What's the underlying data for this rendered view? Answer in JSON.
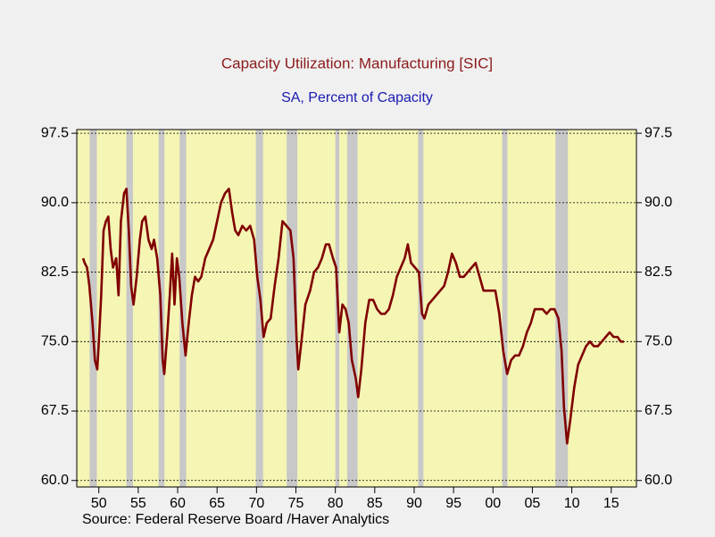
{
  "chart_data": {
    "type": "line",
    "title": "Capacity Utilization: Manufacturing [SIC]",
    "subtitle": "SA, Percent of Capacity",
    "source": "Source:  Federal Reserve Board /Haver Analytics",
    "x": [
      1948.0,
      1948.2,
      1948.5,
      1948.8,
      1949.2,
      1949.5,
      1949.8,
      1950.0,
      1950.3,
      1950.6,
      1950.9,
      1951.2,
      1951.5,
      1951.8,
      1952.2,
      1952.5,
      1952.8,
      1953.2,
      1953.5,
      1953.8,
      1954.1,
      1954.4,
      1954.8,
      1955.2,
      1955.5,
      1955.9,
      1956.3,
      1956.7,
      1957.0,
      1957.4,
      1957.8,
      1958.1,
      1958.3,
      1958.7,
      1959.0,
      1959.3,
      1959.6,
      1959.9,
      1960.2,
      1960.6,
      1961.0,
      1961.4,
      1961.8,
      1962.2,
      1962.6,
      1963.0,
      1963.5,
      1964.0,
      1964.5,
      1965.0,
      1965.5,
      1966.0,
      1966.5,
      1966.9,
      1967.3,
      1967.7,
      1968.2,
      1968.7,
      1969.2,
      1969.7,
      1970.1,
      1970.5,
      1970.9,
      1971.3,
      1971.8,
      1972.3,
      1972.8,
      1973.3,
      1973.8,
      1974.3,
      1974.7,
      1975.1,
      1975.3,
      1975.7,
      1976.2,
      1976.8,
      1977.3,
      1977.8,
      1978.3,
      1978.8,
      1979.2,
      1979.7,
      1980.1,
      1980.5,
      1980.9,
      1981.3,
      1981.7,
      1982.1,
      1982.6,
      1982.9,
      1983.3,
      1983.8,
      1984.3,
      1984.8,
      1985.3,
      1985.8,
      1986.3,
      1986.8,
      1987.3,
      1987.8,
      1988.3,
      1988.8,
      1989.2,
      1989.6,
      1990.1,
      1990.6,
      1991.0,
      1991.3,
      1991.8,
      1992.3,
      1992.8,
      1993.3,
      1993.8,
      1994.3,
      1994.8,
      1995.3,
      1995.8,
      1996.3,
      1996.8,
      1997.3,
      1997.8,
      1998.3,
      1998.8,
      1999.3,
      1999.8,
      2000.3,
      2000.8,
      2001.3,
      2001.8,
      2002.3,
      2002.8,
      2003.3,
      2003.8,
      2004.3,
      2004.8,
      2005.3,
      2005.8,
      2006.3,
      2006.8,
      2007.3,
      2007.8,
      2008.3,
      2008.7,
      2009.0,
      2009.4,
      2009.8,
      2010.3,
      2010.8,
      2011.3,
      2011.8,
      2012.3,
      2012.8,
      2013.3,
      2013.8,
      2014.3,
      2014.8,
      2015.3,
      2015.8,
      2016.2,
      2016.6
    ],
    "series": [
      {
        "name": "Capacity Utilization: Manufacturing [SIC]",
        "color": "#800000",
        "values": [
          84.0,
          83.5,
          83,
          81,
          77,
          73,
          72,
          75,
          80,
          87,
          88,
          88.5,
          85,
          83,
          84,
          80,
          88,
          91,
          91.5,
          87,
          81,
          79,
          82,
          86,
          88,
          88.5,
          86,
          85,
          86,
          84,
          80,
          73,
          71.5,
          76,
          80,
          84.5,
          79,
          84,
          82,
          77,
          73.5,
          77,
          80,
          82,
          81.5,
          82,
          84,
          85,
          86,
          88,
          90,
          91,
          91.5,
          89,
          87,
          86.5,
          87.5,
          87,
          87.5,
          86,
          82,
          79.5,
          75.5,
          77,
          77.5,
          81,
          84,
          88,
          87.5,
          87,
          84,
          75,
          72,
          75,
          79,
          80.5,
          82.5,
          83,
          84,
          85.5,
          85.5,
          84,
          83,
          76,
          79,
          78.5,
          77,
          73,
          71,
          69,
          72,
          77,
          79.5,
          79.5,
          78.5,
          78,
          78,
          78.5,
          80,
          82,
          83,
          84,
          85.5,
          83.5,
          83,
          82.5,
          78,
          77.5,
          79,
          79.5,
          80,
          80.5,
          81,
          82.5,
          84.5,
          83.5,
          82,
          82,
          82.5,
          83,
          83.5,
          82,
          80.5,
          80.5,
          80.5,
          80.5,
          78,
          74,
          71.5,
          73,
          73.5,
          73.5,
          74.5,
          76,
          77,
          78.5,
          78.5,
          78.5,
          78,
          78.5,
          78.5,
          77.5,
          74,
          68,
          64,
          66.5,
          70,
          72.5,
          73.5,
          74.5,
          75,
          74.5,
          74.5,
          75,
          75.5,
          76,
          75.5,
          75.5,
          75,
          75
        ]
      }
    ],
    "recessions": [
      [
        1948.83,
        1949.75
      ],
      [
        1953.5,
        1954.33
      ],
      [
        1957.58,
        1958.33
      ],
      [
        1960.25,
        1961.08
      ],
      [
        1969.92,
        1970.83
      ],
      [
        1973.83,
        1975.17
      ],
      [
        1980.0,
        1980.5
      ],
      [
        1981.5,
        1982.83
      ],
      [
        1990.5,
        1991.17
      ],
      [
        2001.17,
        2001.83
      ],
      [
        2007.92,
        2009.5
      ]
    ],
    "xlim": [
      1947.2,
      2018.2
    ],
    "xticks": [
      {
        "value": 1950,
        "label": "50"
      },
      {
        "value": 1955,
        "label": "55"
      },
      {
        "value": 1960,
        "label": "60"
      },
      {
        "value": 1965,
        "label": "65"
      },
      {
        "value": 1970,
        "label": "70"
      },
      {
        "value": 1975,
        "label": "75"
      },
      {
        "value": 1980,
        "label": "80"
      },
      {
        "value": 1985,
        "label": "85"
      },
      {
        "value": 1990,
        "label": "90"
      },
      {
        "value": 1995,
        "label": "95"
      },
      {
        "value": 2000,
        "label": "00"
      },
      {
        "value": 2005,
        "label": "05"
      },
      {
        "value": 2010,
        "label": "10"
      },
      {
        "value": 2015,
        "label": "15"
      }
    ],
    "ylim": [
      59.3,
      97.9
    ],
    "yticks": [
      {
        "value": 60,
        "label": "60.0"
      },
      {
        "value": 67.5,
        "label": "67.5"
      },
      {
        "value": 75,
        "label": "75.0"
      },
      {
        "value": 82.5,
        "label": "82.5"
      },
      {
        "value": 90,
        "label": "90.0"
      },
      {
        "value": 97.5,
        "label": "97.5"
      }
    ],
    "grid": true
  }
}
